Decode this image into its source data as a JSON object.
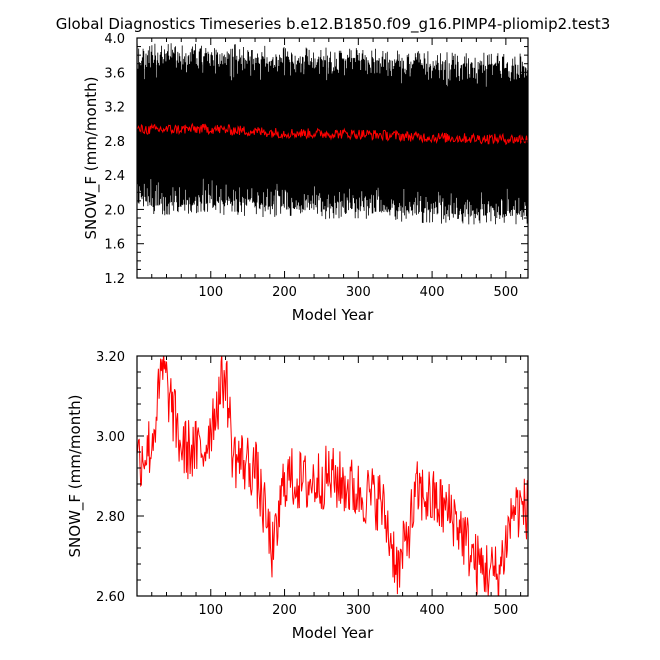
{
  "title": "Global Diagnostics Timeseries b.e12.B1850.f09_g16.PIMP4-pliomip2.test3",
  "colors": {
    "monthly": "#000000",
    "annual": "#ff0000"
  },
  "chart_data": [
    {
      "type": "line",
      "xlabel": "Model Year",
      "ylabel": "SNOW_F (mm/month)",
      "xlim": [
        0,
        530
      ],
      "ylim": [
        1.2,
        4.0
      ],
      "xticks": [
        "100",
        "200",
        "300",
        "400",
        "500"
      ],
      "yticks": [
        "1.2",
        "1.6",
        "2.0",
        "2.4",
        "2.8",
        "3.2",
        "3.6",
        "4.0"
      ],
      "series": [
        {
          "role": "monthly",
          "color": "#000000",
          "mean_by_century": [
            [
              0,
              2.93
            ],
            [
              100,
              2.94
            ],
            [
              200,
              2.89
            ],
            [
              300,
              2.88
            ],
            [
              400,
              2.84
            ],
            [
              500,
              2.82
            ],
            [
              530,
              2.82
            ]
          ],
          "seasonal_range": [
            2.05,
            3.8
          ]
        },
        {
          "role": "annual_mean",
          "color": "#ff0000",
          "values": [
            [
              0,
              2.93
            ],
            [
              100,
              2.94
            ],
            [
              200,
              2.89
            ],
            [
              300,
              2.88
            ],
            [
              400,
              2.84
            ],
            [
              500,
              2.82
            ],
            [
              530,
              2.82
            ]
          ]
        }
      ]
    },
    {
      "type": "line",
      "xlabel": "Model Year",
      "ylabel": "SNOW_F (mm/month)",
      "xlim": [
        0,
        530
      ],
      "ylim": [
        2.6,
        3.2
      ],
      "xticks": [
        "100",
        "200",
        "300",
        "400",
        "500"
      ],
      "yticks": [
        "2.60",
        "2.80",
        "3.00",
        "3.20"
      ],
      "series": [
        {
          "role": "annual_mean",
          "color": "#ff0000",
          "values": [
            [
              0,
              2.94
            ],
            [
              20,
              2.98
            ],
            [
              35,
              3.17
            ],
            [
              60,
              2.97
            ],
            [
              90,
              2.96
            ],
            [
              120,
              3.16
            ],
            [
              130,
              2.95
            ],
            [
              160,
              2.92
            ],
            [
              185,
              2.7
            ],
            [
              200,
              2.9
            ],
            [
              230,
              2.88
            ],
            [
              260,
              2.9
            ],
            [
              300,
              2.86
            ],
            [
              330,
              2.84
            ],
            [
              355,
              2.66
            ],
            [
              380,
              2.86
            ],
            [
              400,
              2.84
            ],
            [
              430,
              2.8
            ],
            [
              460,
              2.68
            ],
            [
              490,
              2.65
            ],
            [
              510,
              2.82
            ],
            [
              530,
              2.82
            ]
          ],
          "annotated_extremes": {
            "max": [
              [
                35,
                3.17
              ],
              [
                120,
                3.16
              ]
            ],
            "min": [
              [
                355,
                2.66
              ],
              [
                490,
                2.65
              ]
            ]
          }
        }
      ]
    }
  ]
}
